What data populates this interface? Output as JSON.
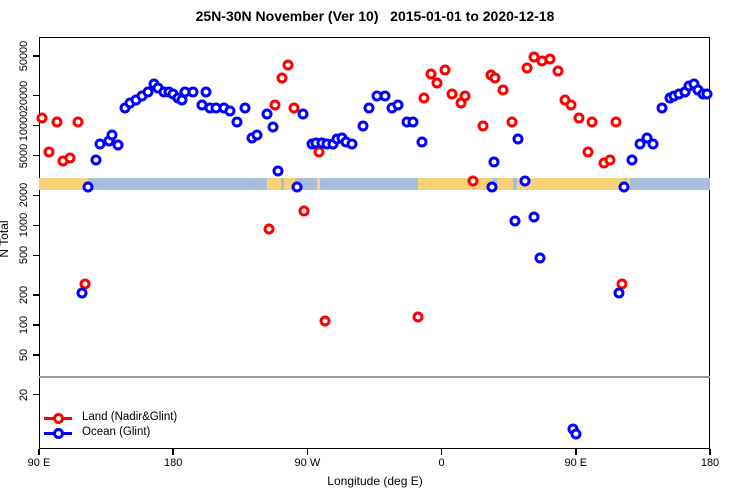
{
  "title": "25N-30N November (Ver 10)   2015-01-01 to 2020-12-18",
  "colors": {
    "land_series": "#ff0000",
    "ocean_series": "#0000ff",
    "strip_land": "#f9d178",
    "strip_ocean": "#a8bedb",
    "reference_line": "#999999"
  },
  "legend": {
    "entries": [
      {
        "label": "Land (Nadir&Glint)",
        "color": "#ff0000"
      },
      {
        "label": "Ocean (Glint)",
        "color": "#0000ff"
      }
    ]
  },
  "chart_data": {
    "type": "scatter",
    "title": "25N-30N November (Ver 10)   2015-01-01 to 2020-12-18",
    "xlabel": "Longitude (deg E)",
    "ylabel": "N Total",
    "x_axis": {
      "note": "wrapped longitude, degrees east increasing left to right",
      "range_deg_east": [
        90,
        540
      ],
      "ticks": [
        {
          "pos": 90,
          "label": "90 E"
        },
        {
          "pos": 180,
          "label": "180"
        },
        {
          "pos": 270,
          "label": "90 W"
        },
        {
          "pos": 360,
          "label": "0"
        },
        {
          "pos": 450,
          "label": "90 E"
        },
        {
          "pos": 540,
          "label": "180"
        }
      ]
    },
    "y_axis": {
      "scale": "log",
      "range": [
        6,
        60000
      ],
      "ticks": [
        20,
        50,
        100,
        200,
        500,
        1000,
        2000,
        5000,
        10000,
        20000,
        50000
      ]
    },
    "reference_line": {
      "value": 30,
      "color": "#999999"
    },
    "surface_strip": {
      "value_center": 2600,
      "land_color": "#f9d178",
      "ocean_color": "#a8bedb",
      "segments": [
        {
          "surface": "land",
          "from": 90,
          "to": 123
        },
        {
          "surface": "ocean",
          "from": 123,
          "to": 243
        },
        {
          "surface": "land",
          "from": 243,
          "to": 252.5
        },
        {
          "surface": "ocean",
          "from": 252.5,
          "to": 254
        },
        {
          "surface": "land",
          "from": 254,
          "to": 262
        },
        {
          "surface": "ocean",
          "from": 262,
          "to": 276.5
        },
        {
          "surface": "land",
          "from": 276.5,
          "to": 278.5
        },
        {
          "surface": "ocean",
          "from": 278.5,
          "to": 344
        },
        {
          "surface": "land",
          "from": 344,
          "to": 394
        },
        {
          "surface": "ocean",
          "from": 394,
          "to": 397
        },
        {
          "surface": "land",
          "from": 397,
          "to": 408
        },
        {
          "surface": "ocean",
          "from": 408,
          "to": 410.5
        },
        {
          "surface": "land",
          "from": 410.5,
          "to": 483
        },
        {
          "surface": "ocean",
          "from": 483,
          "to": 484.5
        },
        {
          "surface": "land",
          "from": 484.5,
          "to": 486.5
        },
        {
          "surface": "ocean",
          "from": 486.5,
          "to": 540
        }
      ]
    },
    "legend": {
      "position": "bottom-left"
    },
    "series": [
      {
        "name": "Land (Nadir&Glint)",
        "color": "#ff0000",
        "marker": "open-circle",
        "points": [
          [
            92,
            12000
          ],
          [
            102,
            11000
          ],
          [
            116,
            11000
          ],
          [
            97,
            5500
          ],
          [
            106,
            4400
          ],
          [
            111,
            4700
          ],
          [
            121,
            260
          ],
          [
            244,
            920
          ],
          [
            248,
            16000
          ],
          [
            253,
            30000
          ],
          [
            257,
            41000
          ],
          [
            261,
            15000
          ],
          [
            268,
            1400
          ],
          [
            278,
            5500
          ],
          [
            282,
            110
          ],
          [
            344,
            120
          ],
          [
            348,
            19000
          ],
          [
            353,
            33000
          ],
          [
            357,
            27000
          ],
          [
            362,
            36000
          ],
          [
            367,
            21000
          ],
          [
            373,
            17000
          ],
          [
            376,
            20000
          ],
          [
            381,
            2800
          ],
          [
            388,
            10000
          ],
          [
            393,
            32000
          ],
          [
            396,
            30000
          ],
          [
            401,
            23000
          ],
          [
            407,
            11000
          ],
          [
            417,
            38000
          ],
          [
            422,
            49000
          ],
          [
            427,
            45000
          ],
          [
            433,
            47000
          ],
          [
            438,
            35000
          ],
          [
            443,
            18000
          ],
          [
            447,
            16000
          ],
          [
            452,
            12000
          ],
          [
            458,
            5400
          ],
          [
            461,
            11000
          ],
          [
            469,
            4200
          ],
          [
            473,
            4500
          ],
          [
            477,
            11000
          ],
          [
            481,
            260
          ]
        ]
      },
      {
        "name": "Ocean (Glint)",
        "color": "#0000ff",
        "marker": "open-circle",
        "points": [
          [
            119,
            210
          ],
          [
            123,
            2400
          ],
          [
            128,
            4500
          ],
          [
            131,
            6500
          ],
          [
            137,
            7000
          ],
          [
            139,
            8000
          ],
          [
            143,
            6400
          ],
          [
            148,
            15000
          ],
          [
            151,
            17000
          ],
          [
            155,
            18000
          ],
          [
            159,
            20000
          ],
          [
            163,
            22000
          ],
          [
            167,
            26000
          ],
          [
            170,
            24000
          ],
          [
            174,
            22000
          ],
          [
            177,
            22000
          ],
          [
            180,
            21000
          ],
          [
            183,
            19000
          ],
          [
            186,
            18000
          ],
          [
            188,
            22000
          ],
          [
            193,
            22000
          ],
          [
            199,
            16000
          ],
          [
            202,
            22000
          ],
          [
            205,
            15000
          ],
          [
            209,
            15000
          ],
          [
            214,
            15000
          ],
          [
            218,
            14000
          ],
          [
            223,
            11000
          ],
          [
            228,
            15000
          ],
          [
            233,
            7500
          ],
          [
            236,
            8000
          ],
          [
            243,
            13000
          ],
          [
            247,
            9600
          ],
          [
            250,
            3500
          ],
          [
            263,
            2400
          ],
          [
            267,
            13000
          ],
          [
            273,
            6600
          ],
          [
            276,
            6700
          ],
          [
            280,
            6700
          ],
          [
            283,
            6500
          ],
          [
            287,
            6600
          ],
          [
            290,
            7300
          ],
          [
            293,
            7500
          ],
          [
            296,
            6800
          ],
          [
            300,
            6600
          ],
          [
            307,
            10000
          ],
          [
            311,
            15000
          ],
          [
            317,
            20000
          ],
          [
            322,
            20000
          ],
          [
            327,
            15000
          ],
          [
            331,
            16000
          ],
          [
            337,
            11000
          ],
          [
            341,
            11000
          ],
          [
            347,
            6800
          ],
          [
            394,
            2400
          ],
          [
            395,
            4300
          ],
          [
            409,
            1100
          ],
          [
            411,
            7400
          ],
          [
            416,
            2800
          ],
          [
            422,
            1200
          ],
          [
            426,
            470
          ],
          [
            448,
            9
          ],
          [
            450,
            8
          ],
          [
            479,
            210
          ],
          [
            482,
            2400
          ],
          [
            488,
            4500
          ],
          [
            493,
            6500
          ],
          [
            498,
            7500
          ],
          [
            502,
            6500
          ],
          [
            508,
            15000
          ],
          [
            513,
            19000
          ],
          [
            516,
            20000
          ],
          [
            519,
            21000
          ],
          [
            523,
            22000
          ],
          [
            526,
            25000
          ],
          [
            529,
            26000
          ],
          [
            532,
            23000
          ],
          [
            535,
            21000
          ],
          [
            538,
            21000
          ]
        ]
      }
    ]
  }
}
